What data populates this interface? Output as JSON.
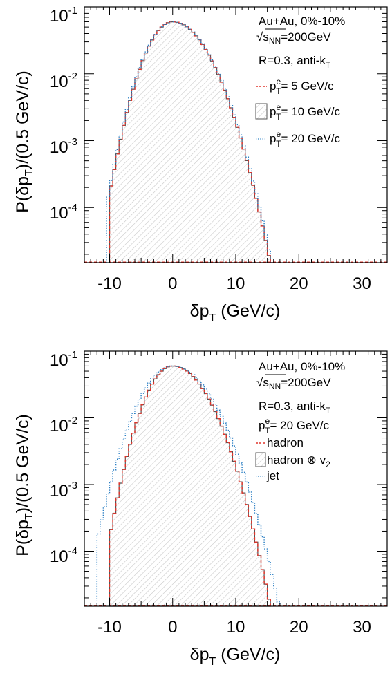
{
  "colors": {
    "hist_solid": "#555555",
    "hist_red": "#e0352b",
    "hist_blue": "#2a7fc4",
    "fill_hatch": "#bdbdbd",
    "frame": "#000000"
  },
  "chart_data": [
    {
      "type": "area",
      "title": "",
      "xlabel": "δp_T (GeV/c)",
      "ylabel": "P(δp_T)/(0.5 GeV/c)",
      "yscale": "log",
      "xlim": [
        -14,
        34
      ],
      "ylim": [
        1.5e-05,
        0.1
      ],
      "xticks": [
        -10,
        0,
        10,
        20,
        30
      ],
      "xtick_labels": [
        "-10",
        "0",
        "10",
        "20",
        "30"
      ],
      "ytick_labels": [
        {
          "base": "10",
          "exp": "-1",
          "value": 0.1
        },
        {
          "base": "10",
          "exp": "-2",
          "value": 0.01
        },
        {
          "base": "10",
          "exp": "-3",
          "value": 0.001
        },
        {
          "base": "10",
          "exp": "-4",
          "value": 0.0001
        }
      ],
      "legend_position": "top-right",
      "annotations": {
        "line1": "Au+Au, 0%-10%",
        "sqrt": "√",
        "s": "s",
        "nn": "NN",
        "energy": "=200GeV",
        "line3_main": "R=0.3, anti-k",
        "line3_sub": "T"
      },
      "legend": [
        {
          "pre": "p",
          "sup": "e",
          "sub": "T",
          "post": "=  5 GeV/c",
          "style": "red-dashed"
        },
        {
          "pre": "p",
          "sup": "e",
          "sub": "T",
          "post": "= 10 GeV/c",
          "style": "hatched"
        },
        {
          "pre": "p",
          "sup": "e",
          "sub": "T",
          "post": "= 20 GeV/c",
          "style": "blue-dotted"
        }
      ],
      "series": [
        {
          "name": "p_T^e = 5 GeV/c",
          "style": "red-dashed",
          "mu": 0.0,
          "sigma_left": 2.9,
          "sigma_right": 3.8,
          "peak": 0.06,
          "x_min": -10.0,
          "x_max": 16.0
        },
        {
          "name": "p_T^e = 10 GeV/c",
          "style": "hatched",
          "mu": 0.0,
          "sigma_left": 2.9,
          "sigma_right": 3.8,
          "peak": 0.06,
          "x_min": -10.0,
          "x_max": 15.5
        },
        {
          "name": "p_T^e = 20 GeV/c",
          "style": "blue-dotted",
          "mu": 0.0,
          "sigma_left": 2.95,
          "sigma_right": 3.85,
          "peak": 0.06,
          "x_min": -10.5,
          "x_max": 16.0
        }
      ]
    },
    {
      "type": "area",
      "title": "",
      "xlabel": "δp_T (GeV/c)",
      "ylabel": "P(δp_T)/(0.5 GeV/c)",
      "yscale": "log",
      "xlim": [
        -14,
        34
      ],
      "ylim": [
        1.5e-05,
        0.1
      ],
      "xticks": [
        -10,
        0,
        10,
        20,
        30
      ],
      "xtick_labels": [
        "-10",
        "0",
        "10",
        "20",
        "30"
      ],
      "ytick_labels": [
        {
          "base": "10",
          "exp": "-1",
          "value": 0.1
        },
        {
          "base": "10",
          "exp": "-2",
          "value": 0.01
        },
        {
          "base": "10",
          "exp": "-3",
          "value": 0.001
        },
        {
          "base": "10",
          "exp": "-4",
          "value": 0.0001
        }
      ],
      "legend_position": "top-right",
      "annotations": {
        "line1": "Au+Au, 0%-10%",
        "sqrt": "√",
        "s": "s",
        "nn": "NN",
        "energy": "=200GeV",
        "line3_main": "R=0.3, anti-k",
        "line3_sub": "T",
        "line4_pre": "p",
        "line4_sup": "e",
        "line4_sub": "T",
        "line4_post": "= 20 GeV/c"
      },
      "legend": [
        {
          "text": "hadron",
          "style": "red-dashed"
        },
        {
          "text": "hadron ⊗ v",
          "sub": "2",
          "style": "hatched"
        },
        {
          "text": "jet",
          "style": "blue-dotted"
        }
      ],
      "series": [
        {
          "name": "hadron",
          "style": "red-dashed",
          "mu": 0.0,
          "sigma_left": 2.9,
          "sigma_right": 3.8,
          "peak": 0.06,
          "x_min": -10.0,
          "x_max": 15.5
        },
        {
          "name": "hadron ⊗ v2",
          "style": "hatched",
          "mu": 0.0,
          "sigma_left": 2.9,
          "sigma_right": 3.8,
          "peak": 0.06,
          "x_min": -10.0,
          "x_max": 15.5
        },
        {
          "name": "jet",
          "style": "blue-dotted",
          "mu": 0.0,
          "sigma_left": 3.45,
          "sigma_right": 4.15,
          "peak": 0.06,
          "x_min": -12.0,
          "x_max": 17.0
        }
      ]
    }
  ]
}
